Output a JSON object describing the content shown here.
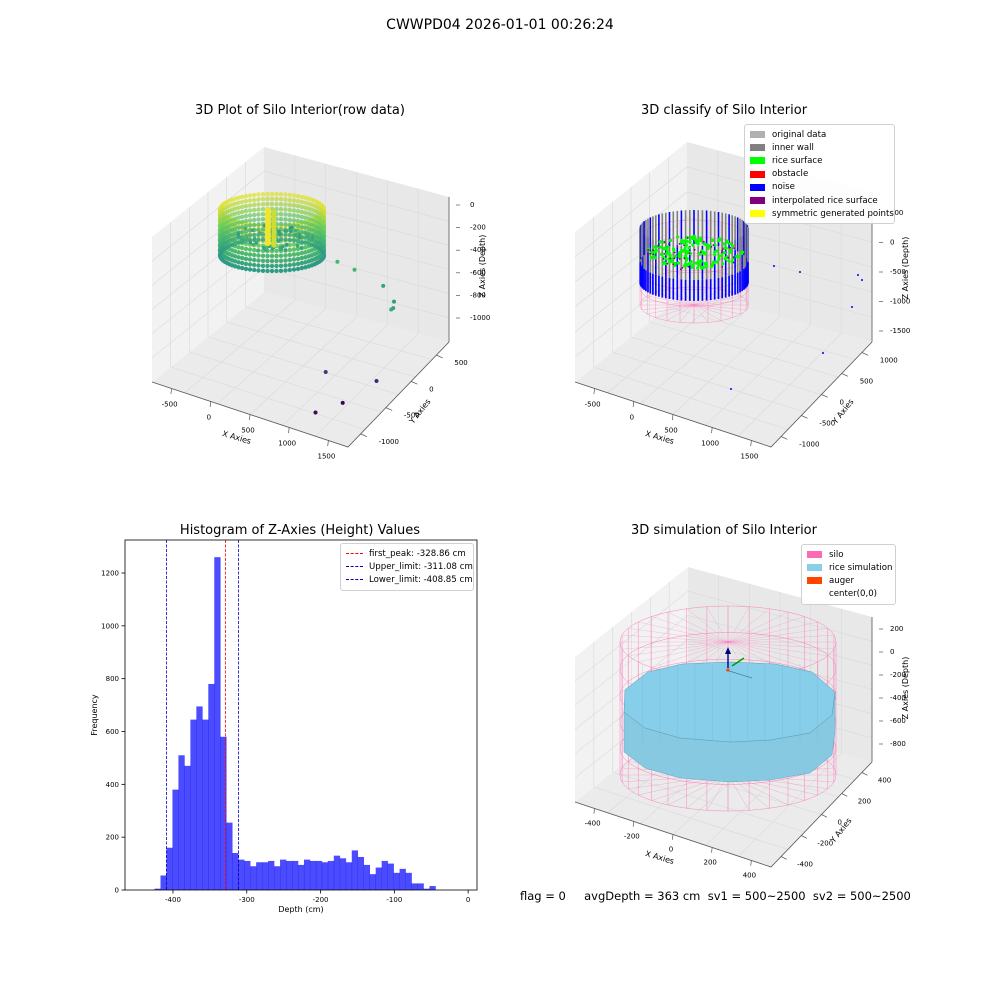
{
  "suptitle": "CWWPD04 2026-01-01 00:26:24",
  "status_text": "flag = 0     avgDepth = 363 cm  sv1 = 500~2500  sv2 = 500~2500",
  "chart_data": [
    {
      "type": "scatter3d",
      "title": "3D Plot of Silo Interior(row data)",
      "xlabel": "X Axies",
      "ylabel": "Y Axies",
      "zlabel": "Z Axies (Depth)",
      "x_ticks": [
        "-500",
        "0",
        "500",
        "1000",
        "1500"
      ],
      "y_ticks": [
        "-1000",
        "-500",
        "0",
        "500"
      ],
      "z_ticks": [
        "0",
        "-200",
        "-400",
        "-600",
        "-800",
        "-1000"
      ],
      "xlim": [
        -600,
        1700
      ],
      "ylim": [
        -1100,
        700
      ],
      "zlim": [
        -1100,
        50
      ],
      "colormap": "viridis",
      "outliers": [
        {
          "x": 700,
          "y": 100,
          "z": -330
        },
        {
          "x": 900,
          "y": 100,
          "z": -350
        },
        {
          "x": 1200,
          "y": 150,
          "z": -430
        },
        {
          "x": 1400,
          "y": 50,
          "z": -470
        },
        {
          "x": 1500,
          "y": -100,
          "z": -440
        },
        {
          "x": 1550,
          "y": -200,
          "z": -400
        },
        {
          "x": 1450,
          "y": -300,
          "z": -950
        },
        {
          "x": 1100,
          "y": -800,
          "z": -1080
        },
        {
          "x": 1200,
          "y": -500,
          "z": -1100
        },
        {
          "x": 1000,
          "y": -500,
          "z": -900
        }
      ]
    },
    {
      "type": "scatter3d",
      "title": "3D classify of Silo Interior",
      "xlabel": "X Axies",
      "ylabel": "Y Axies",
      "zlabel": "Z Axies (Depth)",
      "x_ticks": [
        "-500",
        "0",
        "500",
        "1000",
        "1500"
      ],
      "y_ticks": [
        "-1000",
        "-500",
        "0",
        "500",
        "1000"
      ],
      "z_ticks": [
        "500",
        "0",
        "-500",
        "-1000",
        "-1500"
      ],
      "legend": [
        {
          "label": "original data",
          "color": "#b0b0b0"
        },
        {
          "label": "inner wall",
          "color": "#808080"
        },
        {
          "label": "rice surface",
          "color": "#00ff00"
        },
        {
          "label": "obstacle",
          "color": "#ff0000"
        },
        {
          "label": "noise",
          "color": "#0000ff"
        },
        {
          "label": "interpolated rice surface",
          "color": "#800080"
        },
        {
          "label": "symmetric generated points",
          "color": "#ffff00"
        }
      ]
    },
    {
      "type": "histogram",
      "title": "Histogram of Z-Axies (Height) Values",
      "xlabel": "Depth (cm)",
      "ylabel": "Frequency",
      "xlim": [
        -465,
        12
      ],
      "ylim": [
        0,
        1325
      ],
      "x_ticks": [
        -400,
        -300,
        -200,
        -100,
        0
      ],
      "y_ticks": [
        0,
        200,
        400,
        600,
        800,
        1000,
        1200
      ],
      "bin_start": -425,
      "bin_width": 8.1,
      "values": [
        5,
        55,
        160,
        380,
        510,
        470,
        645,
        695,
        645,
        780,
        1260,
        580,
        255,
        140,
        115,
        110,
        90,
        105,
        105,
        110,
        90,
        115,
        110,
        110,
        95,
        115,
        110,
        110,
        105,
        110,
        130,
        120,
        105,
        150,
        125,
        95,
        60,
        85,
        110,
        100,
        65,
        80,
        65,
        25,
        25,
        5,
        15
      ],
      "bar_color": "#0000ff",
      "lines": [
        {
          "label": "first_peak: -328.86 cm",
          "x": -328.86,
          "color": "#ff0000"
        },
        {
          "label": "Upper_limit: -311.08 cm",
          "x": -311.08,
          "color": "#0000bb"
        },
        {
          "label": "Lower_limit: -408.85 cm",
          "x": -408.85,
          "color": "#0000bb"
        }
      ],
      "legend_position": "upper right"
    },
    {
      "type": "surface3d",
      "title": "3D simulation of Silo Interior",
      "xlabel": "X Axies",
      "ylabel": "Y Axies",
      "zlabel": "Z Axies (Depth)",
      "x_ticks": [
        "-400",
        "-200",
        "0",
        "200",
        "400"
      ],
      "y_ticks": [
        "-400",
        "-200",
        "0",
        "200",
        "400"
      ],
      "z_ticks": [
        "200",
        "0",
        "-200",
        "-400",
        "-600",
        "-800"
      ],
      "legend": [
        {
          "label": "silo",
          "color": "#ff69b4"
        },
        {
          "label": "rice simulation",
          "color": "#87ceeb"
        },
        {
          "label": "auger",
          "color": "#ff4500"
        },
        {
          "label": "center(0,0)",
          "color": "#ffffff"
        }
      ]
    }
  ]
}
